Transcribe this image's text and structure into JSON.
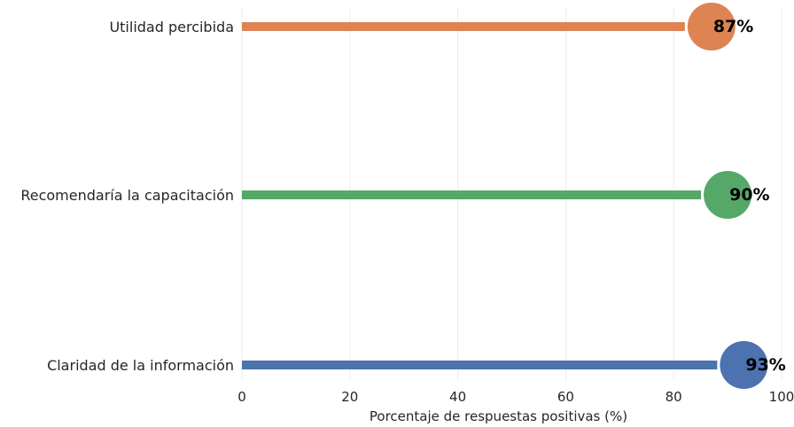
{
  "chart_data": {
    "type": "lollipop",
    "categories": [
      "Utilidad percibida",
      "Recomendaría la capacitación",
      "Claridad de la información"
    ],
    "values": [
      87,
      90,
      93
    ],
    "data_labels": [
      "87%",
      "90%",
      "93%"
    ],
    "colors": [
      "#dd8452",
      "#55a868",
      "#4c72b0"
    ],
    "xlabel": "Porcentaje de respuestas positivas (%)",
    "xlim": [
      0,
      100
    ],
    "xticks": [
      0,
      20,
      40,
      60,
      80,
      100
    ],
    "xtick_labels": [
      "0",
      "20",
      "40",
      "60",
      "80",
      "100"
    ],
    "grid": "vertical"
  }
}
